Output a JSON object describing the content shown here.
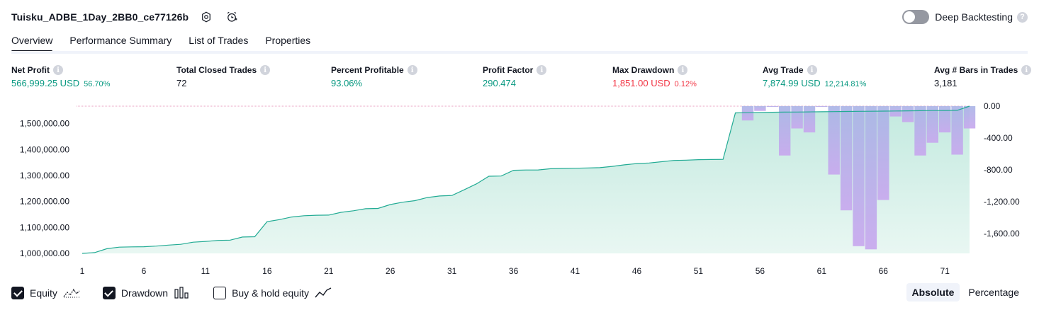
{
  "header": {
    "strategy_name": "Tuisku_ADBE_1Day_2BB0_ce77126b",
    "settings_icon": "gear-icon",
    "alert_icon": "alarm-clock-plus-icon"
  },
  "deep_backtesting": {
    "label": "Deep Backtesting",
    "enabled": false,
    "help": "?"
  },
  "tabs": [
    {
      "label": "Overview",
      "active": true
    },
    {
      "label": "Performance Summary",
      "active": false
    },
    {
      "label": "List of Trades",
      "active": false
    },
    {
      "label": "Properties",
      "active": false
    }
  ],
  "metrics": [
    {
      "label": "Net Profit",
      "value": "566,999.25 USD",
      "pct": "56.70%",
      "tone": "pos"
    },
    {
      "label": "Total Closed Trades",
      "value": "72",
      "pct": "",
      "tone": "neutral"
    },
    {
      "label": "Percent Profitable",
      "value": "93.06%",
      "pct": "",
      "tone": "pos"
    },
    {
      "label": "Profit Factor",
      "value": "290.474",
      "pct": "",
      "tone": "pos"
    },
    {
      "label": "Max Drawdown",
      "value": "1,851.00 USD",
      "pct": "0.12%",
      "tone": "neg"
    },
    {
      "label": "Avg Trade",
      "value": "7,874.99 USD",
      "pct": "12,214.81%",
      "tone": "pos"
    },
    {
      "label": "Avg # Bars in Trades",
      "value": "3,181",
      "pct": "",
      "tone": "neutral"
    }
  ],
  "chart_data": {
    "type": "area",
    "x_ticks": [
      "1",
      "6",
      "11",
      "16",
      "21",
      "26",
      "31",
      "36",
      "41",
      "46",
      "51",
      "56",
      "61",
      "66",
      "71"
    ],
    "left_axis": {
      "ticks": [
        1000000,
        1100000,
        1200000,
        1300000,
        1400000,
        1500000
      ],
      "tick_labels": [
        "1,000,000.00",
        "1,100,000.00",
        "1,200,000.00",
        "1,300,000.00",
        "1,400,000.00",
        "1,500,000.00"
      ],
      "ylim": [
        1000000,
        1566999
      ]
    },
    "right_axis": {
      "ticks": [
        0,
        -400,
        -800,
        -1200,
        -1600
      ],
      "tick_labels": [
        "0.00",
        "-400.00",
        "-800.00",
        "-1,200.00",
        "-1,600.00"
      ],
      "ylim": [
        -1851,
        0
      ]
    },
    "equity": {
      "x": [
        1,
        2,
        3,
        4,
        5,
        6,
        7,
        8,
        9,
        10,
        11,
        12,
        13,
        14,
        15,
        16,
        17,
        18,
        19,
        20,
        21,
        22,
        23,
        24,
        25,
        26,
        27,
        28,
        29,
        30,
        31,
        32,
        33,
        34,
        35,
        36,
        37,
        38,
        39,
        40,
        41,
        42,
        43,
        44,
        45,
        46,
        47,
        48,
        49,
        50,
        51,
        52,
        53,
        54,
        55,
        56,
        57,
        58,
        59,
        60,
        61,
        62,
        63,
        64,
        65,
        66,
        67,
        68,
        69,
        70,
        71,
        72,
        73
      ],
      "values": [
        1000000,
        1003000,
        1018000,
        1024000,
        1025000,
        1025500,
        1028000,
        1032000,
        1035000,
        1043000,
        1046000,
        1050000,
        1051000,
        1063000,
        1064000,
        1122000,
        1130000,
        1140000,
        1145000,
        1147000,
        1147500,
        1158000,
        1164000,
        1172000,
        1173000,
        1188000,
        1197000,
        1203000,
        1215000,
        1221000,
        1223000,
        1245000,
        1268000,
        1297000,
        1298000,
        1320000,
        1321000,
        1321500,
        1326000,
        1327000,
        1328000,
        1329000,
        1330000,
        1335000,
        1341000,
        1346000,
        1348000,
        1353000,
        1358000,
        1359000,
        1361000,
        1361500,
        1362000,
        1541000,
        1542000,
        1543000,
        1543500,
        1544000,
        1544500,
        1545000,
        1545500,
        1546000,
        1546500,
        1547000,
        1547500,
        1548000,
        1548500,
        1549000,
        1549500,
        1550000,
        1550500,
        1551000,
        1567000
      ]
    },
    "drawdown": {
      "x": [
        55,
        56,
        57,
        58,
        59,
        60,
        61,
        62,
        63,
        64,
        65,
        66,
        67,
        68,
        69,
        70,
        71,
        72,
        73
      ],
      "values": [
        -180,
        -60,
        -10,
        -620,
        -280,
        -330,
        -10,
        -860,
        -1310,
        -1760,
        -1800,
        -1180,
        -130,
        -200,
        -620,
        -460,
        -330,
        -610,
        -280
      ]
    },
    "legend_placement": "bottom-left"
  },
  "footer": {
    "equity": {
      "label": "Equity",
      "checked": true
    },
    "drawdown": {
      "label": "Drawdown",
      "checked": true
    },
    "buy_hold": {
      "label": "Buy & hold equity",
      "checked": false
    },
    "modes": [
      {
        "label": "Absolute",
        "active": true
      },
      {
        "label": "Percentage",
        "active": false
      }
    ]
  },
  "colors": {
    "positive": "#089981",
    "negative": "#f23645",
    "equity_line": "#22ab94",
    "equity_fill": "#bfe8dd",
    "drawdown_top": "#a9b4e6",
    "drawdown_bottom": "#c7a6ee",
    "zero_line": "#e8a1c0"
  }
}
